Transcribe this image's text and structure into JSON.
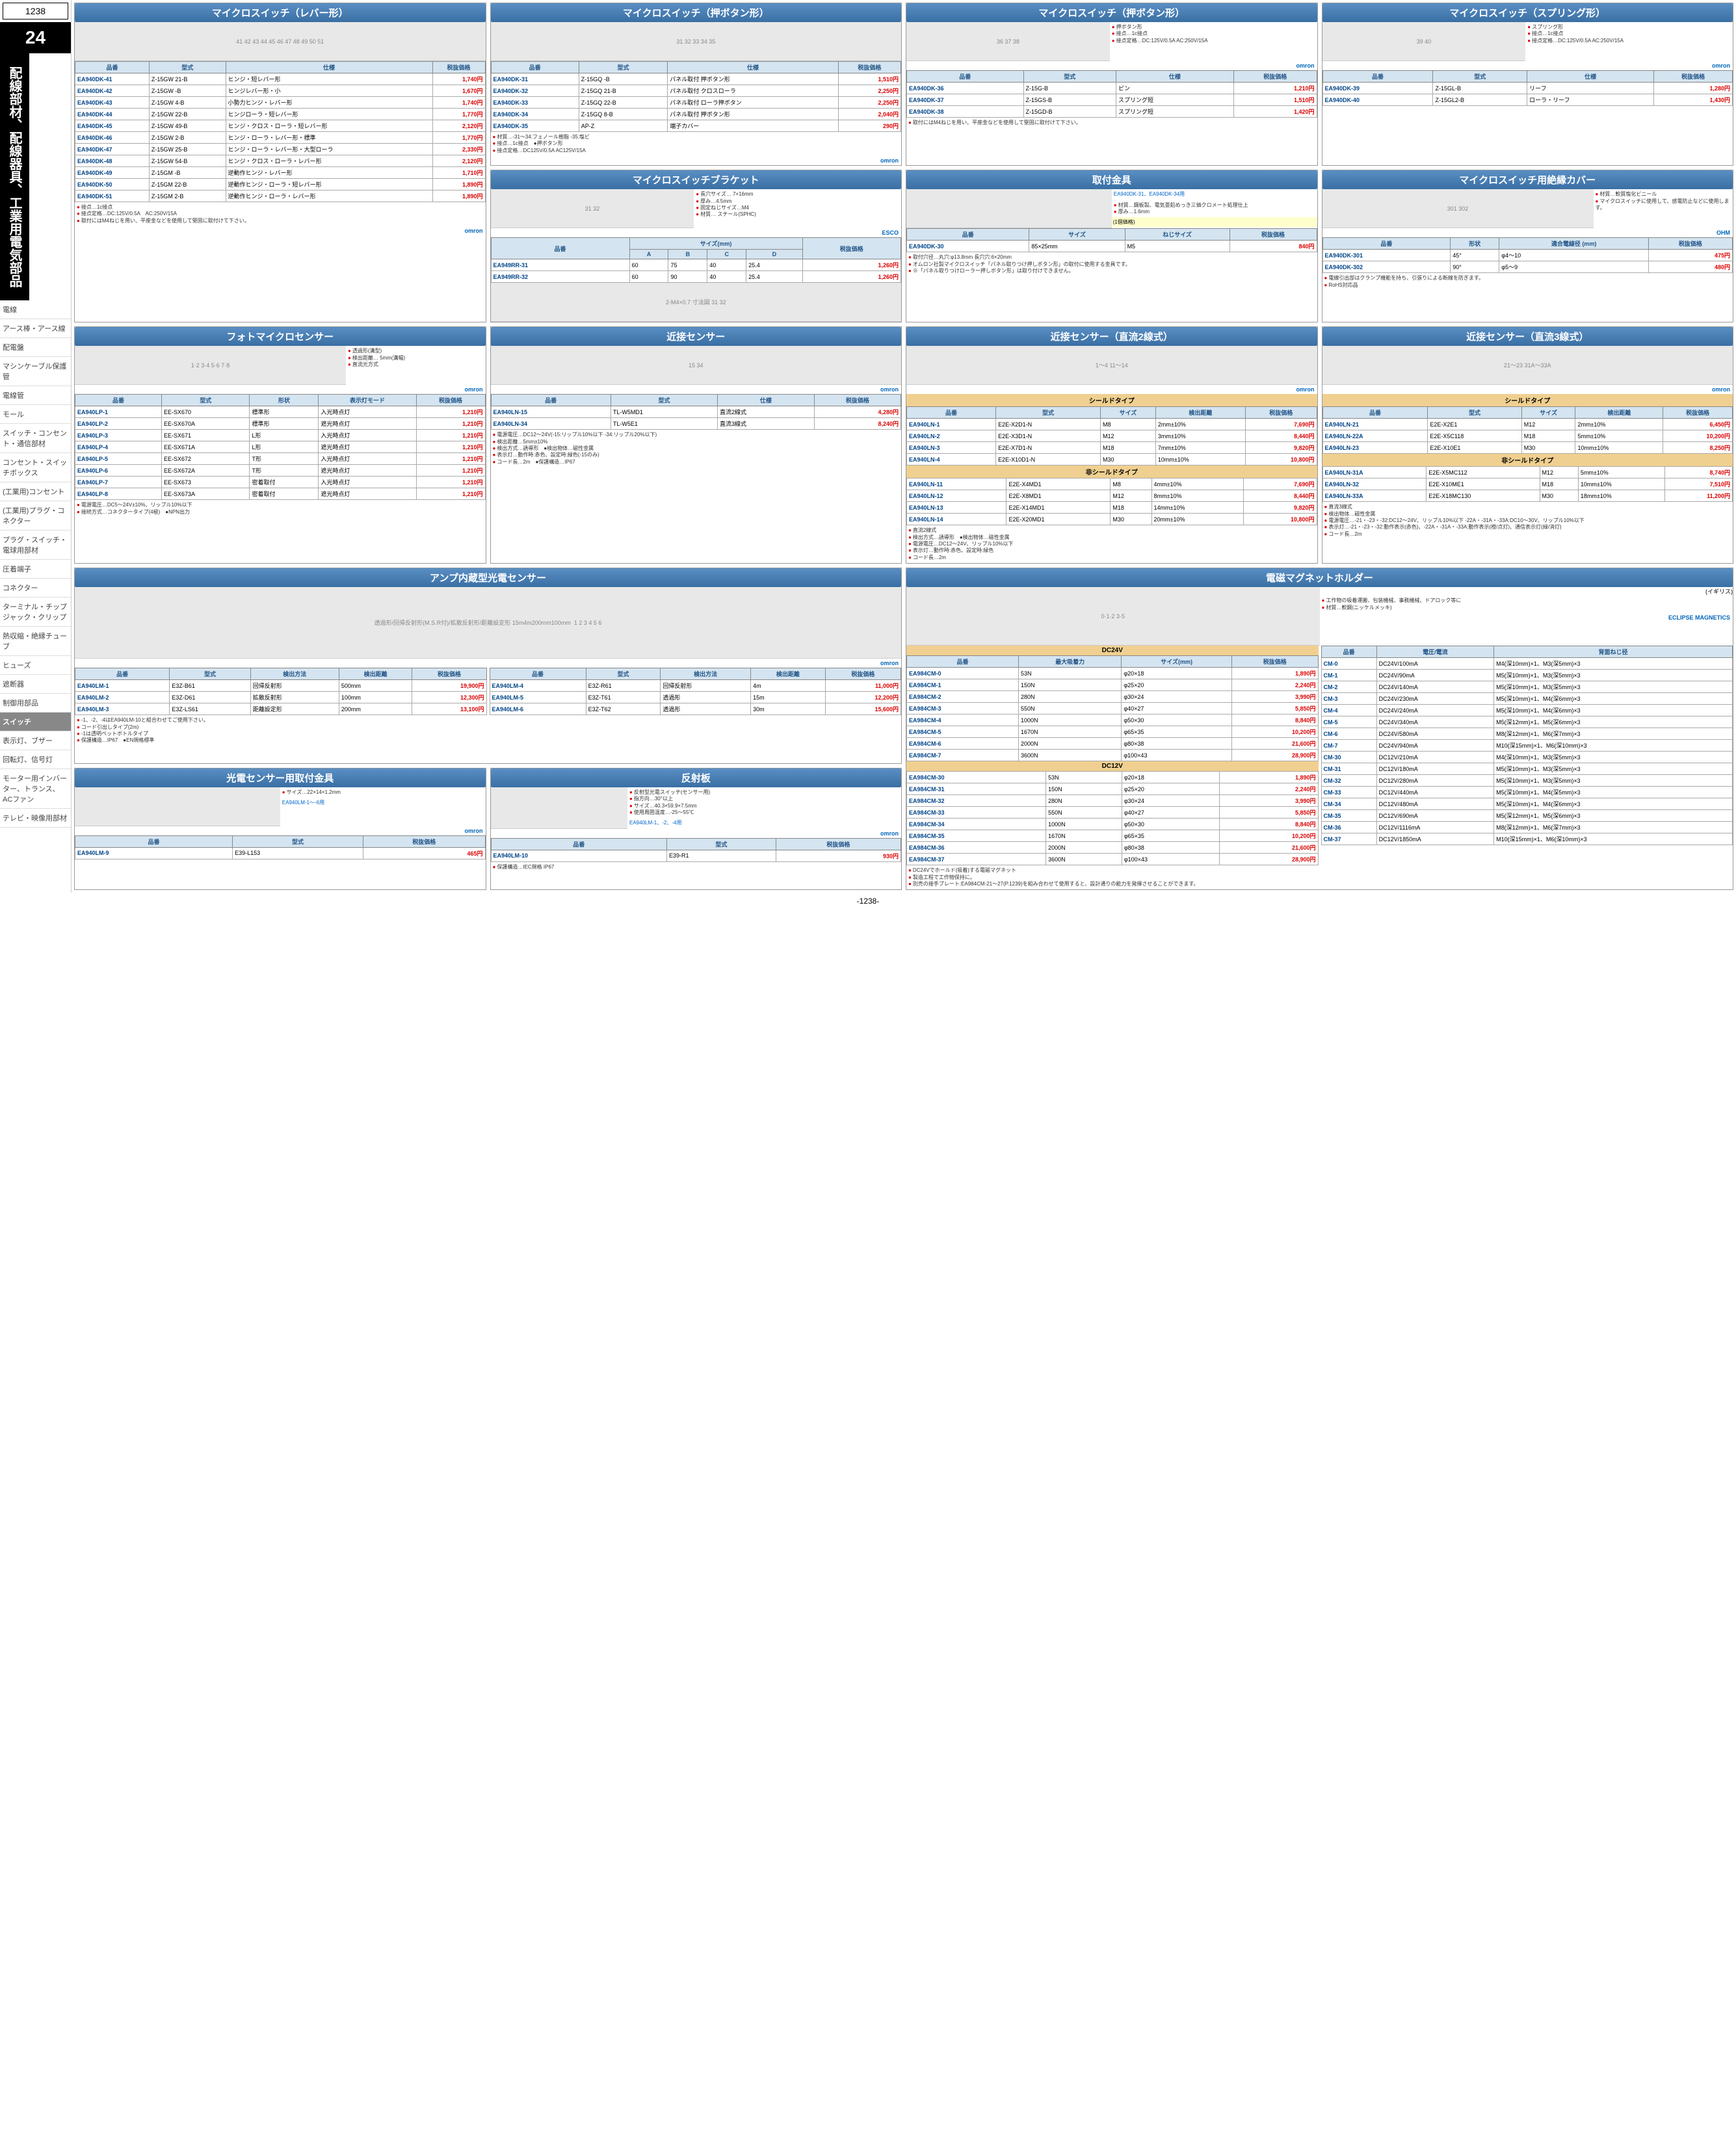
{
  "page": {
    "number": "1238",
    "chapter": "24",
    "chapter_title": "配線部材、配線器具、工業用電気部品",
    "footer": "-1238-"
  },
  "sidebar": [
    "電線",
    "アース棒・アース線",
    "配電盤",
    "マシンケーブル保護管",
    "電線管",
    "モール",
    "スイッチ・コンセント・通信部材",
    "コンセント・スイッチボックス",
    "(工業用)コンセント",
    "(工業用)プラグ・コネクター",
    "プラグ・スイッチ・電球用部材",
    "圧着端子",
    "コネクター",
    "ターミナル・チップジャック・クリップ",
    "熱収縮・絶縁チューブ",
    "ヒューズ",
    "遮断器",
    "制御用部品",
    "スイッチ",
    "表示灯、ブザー",
    "回転灯、信号灯",
    "モーター用インバーター、トランス、ACファン",
    "テレビ・映像用部材"
  ],
  "panels": {
    "ms_lever": {
      "title": "マイクロスイッチ（レバー形）",
      "cols": [
        "品番",
        "型式",
        "仕様",
        "税抜価格"
      ],
      "rows": [
        [
          "EA940DK-41",
          "Z-15GW 21-B",
          "ヒンジ・短レバー形",
          "1,740"
        ],
        [
          "EA940DK-42",
          "Z-15GW -B",
          "ヒンジレバー形・小",
          "1,670"
        ],
        [
          "EA940DK-43",
          "Z-15GW 4-B",
          "小勢力ヒンジ・レバー形",
          "1,740"
        ],
        [
          "EA940DK-44",
          "Z-15GW 22-B",
          "ヒンジローラ・短レバー形",
          "1,770"
        ],
        [
          "EA940DK-45",
          "Z-15GW 49-B",
          "ヒンジ・クロス・ローラ・短レバー形",
          "2,120"
        ],
        [
          "EA940DK-46",
          "Z-15GW 2-B",
          "ヒンジ・ローラ・レバー形・標準",
          "1,770"
        ],
        [
          "EA940DK-47",
          "Z-15GW 25-B",
          "ヒンジ・ローラ・レバー形・大型ローラ",
          "2,330"
        ],
        [
          "EA940DK-48",
          "Z-15GW 54-B",
          "ヒンジ・クロス・ローラ・レバー形",
          "2,120"
        ],
        [
          "EA940DK-49",
          "Z-15GM -B",
          "逆動作ヒンジ・レバー形",
          "1,710"
        ],
        [
          "EA940DK-50",
          "Z-15GM 22-B",
          "逆動作ヒンジ・ローラ・短レバー形",
          "1,890"
        ],
        [
          "EA940DK-51",
          "Z-15GM 2-B",
          "逆動作ヒンジ・ローラ・レバー形",
          "1,890"
        ]
      ],
      "notes": [
        "接点…1c接点",
        "接点定格…DC:125V/0.5A　AC:250V/15A",
        "取付にはM4ねじを用い、平座金などを使用して堅固に取付けて下さい。"
      ],
      "brand": "omron"
    },
    "ms_push1": {
      "title": "マイクロスイッチ（押ボタン形）",
      "cols": [
        "品番",
        "型式",
        "仕様",
        "税抜価格"
      ],
      "rows": [
        [
          "EA940DK-31",
          "Z-15GQ -B",
          "パネル取付 押ボタン形",
          "1,510"
        ],
        [
          "EA940DK-32",
          "Z-15GQ 21-B",
          "パネル取付 クロスローラ",
          "2,250"
        ],
        [
          "EA940DK-33",
          "Z-15GQ 22-B",
          "パネル取付 ローラ押ボタン",
          "2,250"
        ],
        [
          "EA940DK-34",
          "Z-15GQ 8-B",
          "パネル取付 押ボタン形",
          "2,040"
        ],
        [
          "EA940DK-35",
          "AP-Z",
          "端子カバー",
          "290"
        ]
      ],
      "notes": [
        "材質…-31〜34:フェノール樹脂 -35:塩ビ",
        "接点…1c接点　●押ボタン形",
        "接点定格…DC125V/0.5A AC125V/15A"
      ],
      "brand": "omron"
    },
    "ms_push2": {
      "title": "マイクロスイッチ（押ボタン形）",
      "bullets": [
        "押ボタン形",
        "接点…1c接点",
        "接点定格…DC:125V/0.5A AC:250V/15A"
      ],
      "cols": [
        "品番",
        "型式",
        "仕様",
        "税抜価格"
      ],
      "rows": [
        [
          "EA940DK-36",
          "Z-15G-B",
          "ピン",
          "1,210"
        ],
        [
          "EA940DK-37",
          "Z-15GS-B",
          "スプリング短",
          "1,510"
        ],
        [
          "EA940DK-38",
          "Z-15GD-B",
          "スプリング短",
          "1,420"
        ]
      ],
      "notes": [
        "取付にはM4ねじを用い、平座金などを使用して堅固に取付けて下さい。"
      ],
      "brand": "omron"
    },
    "ms_spring": {
      "title": "マイクロスイッチ（スプリング形）",
      "bullets": [
        "スプリング形",
        "接点…1c接点",
        "接点定格…DC:125V/0.5A AC:250V/15A"
      ],
      "cols": [
        "品番",
        "型式",
        "仕様",
        "税抜価格"
      ],
      "rows": [
        [
          "EA940DK-39",
          "Z-15GL-B",
          "リーフ",
          "1,280"
        ],
        [
          "EA940DK-40",
          "Z-15GL2-B",
          "ローラ・リーフ",
          "1,430"
        ]
      ],
      "brand": "omron"
    },
    "mount": {
      "title": "取付金具",
      "link": "EA940DK-31、EA940DK-34用",
      "bullets": [
        "材質…鋼板製、電気亜鉛めっき三価クロメート処理仕上",
        "厚み…1.6mm"
      ],
      "badge": "(1個価格)",
      "cols": [
        "品番",
        "サイズ",
        "ねじサイズ",
        "税抜価格"
      ],
      "rows": [
        [
          "EA940DK-30",
          "85×25mm",
          "M5",
          "840"
        ]
      ],
      "notes": [
        "取付穴径…丸穴:φ13.8mm 長穴穴:6×20mm",
        "オムロン社製マイクロスイッチ「パネル取りつけ押しボタン形」の取付に使用する金具です。",
        "※「パネル取りつけローラー押しボタン形」は取り付けできません。"
      ]
    },
    "ms_cover": {
      "title": "マイクロスイッチ用絶縁カバー",
      "bullets": [
        "材質…軟質塩化ビニール",
        "マイクロスイッチに使用して、感電防止などに使用します。"
      ],
      "cols": [
        "品番",
        "形状",
        "適合電線径 (mm)",
        "税抜価格"
      ],
      "rows": [
        [
          "EA940DK-301",
          "45°",
          "φ4～10",
          "475"
        ],
        [
          "EA940DK-302",
          "90°",
          "φ5～9",
          "480"
        ]
      ],
      "notes": [
        "電線引出部はクランプ機能を持ち、引張りによる断線を防ぎます。",
        "RoHS対応品"
      ],
      "brand": "OHM"
    },
    "bracket": {
      "title": "マイクロスイッチブラケット",
      "bullets": [
        "長穴サイズ… 7×16mm",
        "厚み…4.5mm",
        "固定ねじサイズ…M4",
        "材質… スチール(SPHC)"
      ],
      "cols": [
        "品番",
        "A",
        "B",
        "C",
        "D",
        "税抜価格"
      ],
      "subcol": "サイズ(mm)",
      "rows": [
        [
          "EA949RR-31",
          "60",
          "75",
          "40",
          "25.4",
          "1,260"
        ],
        [
          "EA949RR-32",
          "60",
          "90",
          "40",
          "25.4",
          "1,260"
        ]
      ],
      "brand": "ESCO"
    },
    "photo_ms": {
      "title": "フォトマイクロセンサー",
      "bullets": [
        "透過形(溝型)",
        "検出距離… 5mm(溝幅)",
        "直流光方式"
      ],
      "cols": [
        "品番",
        "型式",
        "形状",
        "表示灯モード",
        "税抜価格"
      ],
      "rows": [
        [
          "EA940LP-1",
          "EE-SX670",
          "標準形",
          "入光時点灯",
          "1,210"
        ],
        [
          "EA940LP-2",
          "EE-SX670A",
          "標準形",
          "遮光時点灯",
          "1,210"
        ],
        [
          "EA940LP-3",
          "EE-SX671",
          "L形",
          "入光時点灯",
          "1,210"
        ],
        [
          "EA940LP-4",
          "EE-SX671A",
          "L形",
          "遮光時点灯",
          "1,210"
        ],
        [
          "EA940LP-5",
          "EE-SX672",
          "T形",
          "入光時点灯",
          "1,210"
        ],
        [
          "EA940LP-6",
          "EE-SX672A",
          "T形",
          "遮光時点灯",
          "1,210"
        ],
        [
          "EA940LP-7",
          "EE-SX673",
          "密着取付",
          "入光時点灯",
          "1,210"
        ],
        [
          "EA940LP-8",
          "EE-SX673A",
          "密着取付",
          "遮光時点灯",
          "1,210"
        ]
      ],
      "notes": [
        "電源電圧…DC5〜24V±10%、リップル10%以下",
        "接続方式…コネクタータイプ(4極)　●NPN出力"
      ],
      "brand": "omron"
    },
    "prox_sensor": {
      "title": "近接センサー",
      "cols": [
        "品番",
        "型式",
        "仕様",
        "税抜価格"
      ],
      "rows": [
        [
          "EA940LN-15",
          "TL-W5MD1",
          "直流2線式",
          "4,280"
        ],
        [
          "EA940LN-34",
          "TL-W5E1",
          "直流3線式",
          "8,240"
        ]
      ],
      "notes": [
        "電源電圧…DC12～24V(-15:リップル10%以下 -34:リップル20%以下)",
        "検出距離…5mm±10%",
        "検出方式…誘導形　●検出物体…磁性金属",
        "表示灯…動作時:赤色、設定時:緑色(-15のみ)",
        "コード長…2m　●保護構造…IP67"
      ],
      "brand": "omron"
    },
    "prox_2wire": {
      "title": "近接センサー（直流2線式）",
      "shield": "シールドタイプ",
      "nonshield": "非シールドタイプ",
      "cols": [
        "品番",
        "型式",
        "サイズ",
        "検出距離",
        "税抜価格"
      ],
      "shield_rows": [
        [
          "EA940LN-1",
          "E2E-X2D1-N",
          "M8",
          "2mm±10%",
          "7,690"
        ],
        [
          "EA940LN-2",
          "E2E-X3D1-N",
          "M12",
          "3mm±10%",
          "8,440"
        ],
        [
          "EA940LN-3",
          "E2E-X7D1-N",
          "M18",
          "7mm±10%",
          "9,820"
        ],
        [
          "EA940LN-4",
          "E2E-X10D1-N",
          "M30",
          "10mm±10%",
          "10,800"
        ]
      ],
      "nonshield_rows": [
        [
          "EA940LN-11",
          "E2E-X4MD1",
          "M8",
          "4mm±10%",
          "7,690"
        ],
        [
          "EA940LN-12",
          "E2E-X8MD1",
          "M12",
          "8mm±10%",
          "8,440"
        ],
        [
          "EA940LN-13",
          "E2E-X14MD1",
          "M18",
          "14mm±10%",
          "9,820"
        ],
        [
          "EA940LN-14",
          "E2E-X20MD1",
          "M30",
          "20mm±10%",
          "10,800"
        ]
      ],
      "notes": [
        "直流2線式",
        "検出方式…誘導形　●検出物体…磁性金属",
        "電源電圧…DC12～24V、リップル10%以下",
        "表示灯…動作時:赤色、設定時:緑色",
        "コード長…2m"
      ],
      "brand": "omron"
    },
    "prox_3wire": {
      "title": "近接センサー（直流3線式）",
      "shield": "シールドタイプ",
      "nonshield": "非シールドタイプ",
      "cols": [
        "品番",
        "型式",
        "サイズ",
        "検出距離",
        "税抜価格"
      ],
      "shield_rows": [
        [
          "EA940LN-21",
          "E2E-X2E1",
          "M12",
          "2mm±10%",
          "6,450"
        ],
        [
          "EA940LN-22A",
          "E2E-X5C118",
          "M18",
          "5mm±10%",
          "10,200"
        ],
        [
          "EA940LN-23",
          "E2E-X10E1",
          "M30",
          "10mm±10%",
          "8,250"
        ]
      ],
      "nonshield_rows": [
        [
          "EA940LN-31A",
          "E2E-X5MC112",
          "M12",
          "5mm±10%",
          "8,740"
        ],
        [
          "EA940LN-32",
          "E2E-X10ME1",
          "M18",
          "10mm±10%",
          "7,510"
        ],
        [
          "EA940LN-33A",
          "E2E-X18MC130",
          "M30",
          "18mm±10%",
          "11,200"
        ]
      ],
      "notes": [
        "直流3線式",
        "検出物体…磁性金属",
        "電源電圧…-21・-23・-32:DC12～24V、リップル10%以下 -22A・-31A・-33A:DC10～30V、リップル10%以下",
        "表示灯…-21・-23・-32:動作表示(赤色)、-22A・-31A・-33A:動作表示(橙/点灯)、通信表示灯(緑/消灯)",
        "コード長…2m"
      ],
      "brand": "omron"
    },
    "amp_photo": {
      "title": "アンプ内蔵型光電センサー",
      "labels": {
        "through": "透過形",
        "retro": "回帰反射形",
        "retro_msr": "回帰反射形(M.S.R付)",
        "diffuse": "拡散反射形",
        "dist15": "15m",
        "dist4": "4m",
        "dist200": "200mm",
        "dist100": "100mm",
        "dist_set": "距離設定形"
      },
      "cols": [
        "品番",
        "型式",
        "検出方法",
        "検出距離",
        "税抜価格"
      ],
      "rows_l": [
        [
          "EA940LM-1",
          "E3Z-B61",
          "回帰反射形",
          "500mm",
          "19,900"
        ],
        [
          "EA940LM-2",
          "E3Z-D61",
          "拡散反射形",
          "100mm",
          "12,300"
        ],
        [
          "EA940LM-3",
          "E3Z-LS61",
          "距離設定形",
          "200mm",
          "13,100"
        ]
      ],
      "rows_r": [
        [
          "EA940LM-4",
          "E3Z-R61",
          "回帰反射形",
          "4m",
          "11,000"
        ],
        [
          "EA940LM-5",
          "E3Z-T61",
          "透過形",
          "15m",
          "12,200"
        ],
        [
          "EA940LM-6",
          "E3Z-T62",
          "透過形",
          "30m",
          "15,600"
        ]
      ],
      "notes": [
        "-1、-2、-4はEA940LM-10と組合わせてご使用下さい。",
        "コード引出しタイプ(2m)",
        "-1は透明ペットボトルタイプ",
        "保護構造…IP67　●EN規格標準"
      ],
      "brand": "omron"
    },
    "photo_mount": {
      "title": "光電センサー用取付金具",
      "bullets": [
        "サイズ…22×14×1.2mm"
      ],
      "link": "EA940LM-1～-6用",
      "cols": [
        "品番",
        "型式",
        "税抜価格"
      ],
      "rows": [
        [
          "EA940LM-9",
          "E39-L153",
          "465"
        ]
      ],
      "brand": "omron"
    },
    "reflector": {
      "title": "反射板",
      "bullets": [
        "反射型光電スイッチ(センサー用)",
        "指方向…30°以上",
        "サイズ…40.3×59.9×7.5mm",
        "使用周囲温度…-25～55℃"
      ],
      "link": "EA940LM-1、-2、-4用",
      "cols": [
        "品番",
        "型式",
        "税抜価格"
      ],
      "rows": [
        [
          "EA940LM-10",
          "E39-R1",
          "930"
        ]
      ],
      "notes": [
        "保護構造…IEC規格 IP67"
      ],
      "brand": "omron"
    },
    "magnet": {
      "title": "電磁マグネットホルダー",
      "origin": "(イギリス)",
      "bullets": [
        "工作物の吸着運搬、包装機械、事務機械、ドアロック等に",
        "材質…軟鋼(ニッケルメッキ)"
      ],
      "dc24": "DC24V",
      "dc12": "DC12V",
      "cols_l": [
        "品番",
        "最大吸着力",
        "サイズ(mm)",
        "税抜価格"
      ],
      "rows24": [
        [
          "EA984CM-0",
          "53N",
          "φ20×18",
          "1,890"
        ],
        [
          "EA984CM-1",
          "150N",
          "φ25×20",
          "2,240"
        ],
        [
          "EA984CM-2",
          "280N",
          "φ30×24",
          "3,990"
        ],
        [
          "EA984CM-3",
          "550N",
          "φ40×27",
          "5,850"
        ],
        [
          "EA984CM-4",
          "1000N",
          "φ50×30",
          "8,840"
        ],
        [
          "EA984CM-5",
          "1670N",
          "φ65×35",
          "10,200"
        ],
        [
          "EA984CM-6",
          "2000N",
          "φ80×38",
          "21,600"
        ],
        [
          "EA984CM-7",
          "3600N",
          "φ100×43",
          "28,900"
        ]
      ],
      "rows12": [
        [
          "EA984CM-30",
          "53N",
          "φ20×18",
          "1,890"
        ],
        [
          "EA984CM-31",
          "150N",
          "φ25×20",
          "2,240"
        ],
        [
          "EA984CM-32",
          "280N",
          "φ30×24",
          "3,990"
        ],
        [
          "EA984CM-33",
          "550N",
          "φ40×27",
          "5,850"
        ],
        [
          "EA984CM-34",
          "1000N",
          "φ50×30",
          "8,840"
        ],
        [
          "EA984CM-35",
          "1670N",
          "φ65×35",
          "10,200"
        ],
        [
          "EA984CM-36",
          "2000N",
          "φ80×38",
          "21,600"
        ],
        [
          "EA984CM-37",
          "3600N",
          "φ100×43",
          "28,900"
        ]
      ],
      "cols_r": [
        "品番",
        "電圧/電流",
        "背面ねじ径"
      ],
      "rows_r": [
        [
          "CM-0",
          "DC24V/100mA",
          "M4(深10mm)×1、M3(深5mm)×3"
        ],
        [
          "CM-1",
          "DC24V/90mA",
          "M5(深10mm)×1、M3(深5mm)×3"
        ],
        [
          "CM-2",
          "DC24V/140mA",
          "M5(深10mm)×1、M3(深5mm)×3"
        ],
        [
          "CM-3",
          "DC24V/230mA",
          "M5(深10mm)×1、M4(深6mm)×3"
        ],
        [
          "CM-4",
          "DC24V/240mA",
          "M5(深10mm)×1、M4(深6mm)×3"
        ],
        [
          "CM-5",
          "DC24V/340mA",
          "M5(深12mm)×1、M5(深6mm)×3"
        ],
        [
          "CM-6",
          "DC24V/580mA",
          "M8(深12mm)×1、M6(深7mm)×3"
        ],
        [
          "CM-7",
          "DC24V/940mA",
          "M10(深15mm)×1、M6(深10mm)×3"
        ],
        [
          "CM-30",
          "DC12V/210mA",
          "M4(深10mm)×1、M3(深5mm)×3"
        ],
        [
          "CM-31",
          "DC12V/180mA",
          "M5(深10mm)×1、M3(深5mm)×3"
        ],
        [
          "CM-32",
          "DC12V/280mA",
          "M5(深10mm)×1、M3(深5mm)×3"
        ],
        [
          "CM-33",
          "DC12V/440mA",
          "M5(深10mm)×1、M4(深5mm)×3"
        ],
        [
          "CM-34",
          "DC12V/480mA",
          "M5(深10mm)×1、M4(深6mm)×3"
        ],
        [
          "CM-35",
          "DC12V/690mA",
          "M5(深12mm)×1、M5(深6mm)×3"
        ],
        [
          "CM-36",
          "DC12V/1116mA",
          "M8(深12mm)×1、M6(深7mm)×3"
        ],
        [
          "CM-37",
          "DC12V/1850mA",
          "M10(深15mm)×1、M6(深10mm)×3"
        ]
      ],
      "notes": [
        "DC24Vでホールド(吸着)する電磁マグネット",
        "製造工程で工作物保持に。",
        "別売の接手プレート:EA984CM-21～27(P.1239)を組み合わせて使用すると、設計通りの能力を発揮させることができます。"
      ],
      "brand": "ECLIPSE MAGNETICS"
    }
  }
}
